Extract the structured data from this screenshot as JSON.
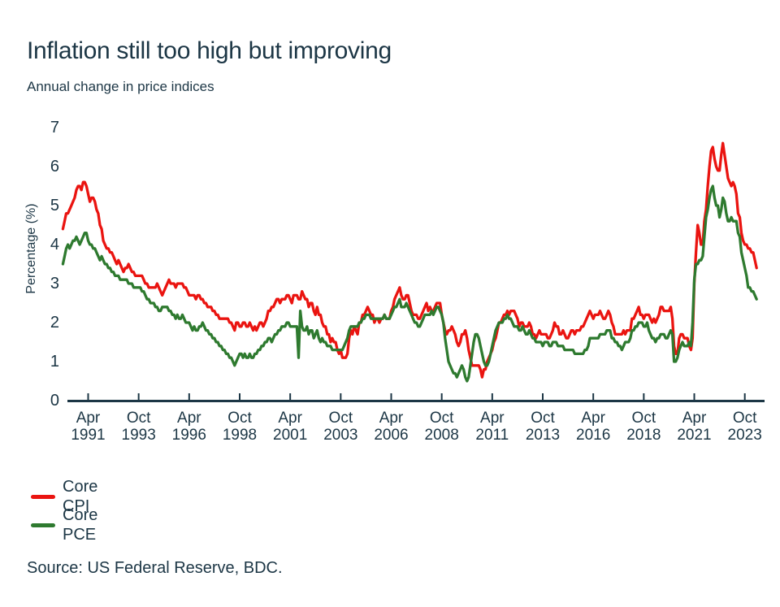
{
  "header": {
    "title": "Inflation still too high but improving",
    "subtitle": "Annual change in price indices"
  },
  "source": "Source: US Federal Reserve, BDC.",
  "colors": {
    "text": "#1c3645",
    "axis": "#1c3645",
    "core_cpi": "#ea1410",
    "core_pce": "#2e7a2f"
  },
  "chart_data": {
    "type": "line",
    "title": "Inflation still too high but improving",
    "subtitle": "Annual change in price indices",
    "xlabel": "",
    "ylabel": "Percentage (%)",
    "ylim": [
      0,
      7
    ],
    "y_ticks": [
      0,
      1,
      2,
      3,
      4,
      5,
      6,
      7
    ],
    "grid": false,
    "legend_position": "bottom-left",
    "frequency": "monthly",
    "x_start": "1990-01",
    "x_end": "2024-05",
    "x_ticks": [
      {
        "month": "Apr",
        "year": "1991"
      },
      {
        "month": "Oct",
        "year": "1993"
      },
      {
        "month": "Apr",
        "year": "1996"
      },
      {
        "month": "Oct",
        "year": "1998"
      },
      {
        "month": "Apr",
        "year": "2001"
      },
      {
        "month": "Oct",
        "year": "2003"
      },
      {
        "month": "Apr",
        "year": "2006"
      },
      {
        "month": "Oct",
        "year": "2008"
      },
      {
        "month": "Apr",
        "year": "2011"
      },
      {
        "month": "Oct",
        "year": "2013"
      },
      {
        "month": "Apr",
        "year": "2016"
      },
      {
        "month": "Oct",
        "year": "2018"
      },
      {
        "month": "Apr",
        "year": "2021"
      },
      {
        "month": "Oct",
        "year": "2023"
      }
    ],
    "series": [
      {
        "name": "Core CPI",
        "color": "#ea1410",
        "values": [
          4.4,
          4.6,
          4.8,
          4.8,
          4.9,
          5.0,
          5.1,
          5.2,
          5.4,
          5.5,
          5.5,
          5.4,
          5.6,
          5.6,
          5.5,
          5.3,
          5.1,
          5.2,
          5.2,
          5.1,
          4.9,
          4.8,
          4.5,
          4.4,
          4.1,
          4.0,
          3.9,
          3.9,
          3.8,
          3.8,
          3.7,
          3.6,
          3.5,
          3.6,
          3.5,
          3.4,
          3.3,
          3.4,
          3.4,
          3.5,
          3.4,
          3.3,
          3.3,
          3.2,
          3.2,
          3.2,
          3.2,
          3.2,
          3.1,
          3.0,
          3.0,
          2.9,
          2.9,
          2.9,
          2.9,
          2.9,
          3.0,
          2.9,
          2.8,
          2.7,
          2.8,
          2.9,
          3.0,
          3.1,
          3.0,
          3.0,
          3.0,
          2.9,
          3.0,
          3.0,
          3.0,
          3.0,
          2.9,
          2.9,
          2.8,
          2.7,
          2.7,
          2.7,
          2.7,
          2.6,
          2.7,
          2.7,
          2.6,
          2.6,
          2.5,
          2.5,
          2.4,
          2.4,
          2.4,
          2.3,
          2.3,
          2.2,
          2.2,
          2.1,
          2.1,
          2.1,
          2.1,
          2.1,
          2.1,
          2.0,
          2.0,
          1.9,
          1.8,
          2.0,
          2.0,
          1.9,
          1.9,
          2.0,
          2.0,
          1.9,
          1.9,
          2.0,
          1.9,
          1.8,
          1.9,
          1.8,
          1.9,
          2.0,
          2.0,
          1.9,
          2.0,
          2.1,
          2.3,
          2.3,
          2.4,
          2.4,
          2.5,
          2.6,
          2.6,
          2.5,
          2.6,
          2.6,
          2.6,
          2.7,
          2.7,
          2.6,
          2.5,
          2.7,
          2.7,
          2.7,
          2.6,
          2.6,
          2.8,
          2.7,
          2.6,
          2.6,
          2.4,
          2.5,
          2.5,
          2.3,
          2.2,
          2.4,
          2.2,
          2.2,
          2.0,
          1.9,
          1.9,
          1.7,
          1.7,
          1.5,
          1.6,
          1.5,
          1.5,
          1.3,
          1.2,
          1.3,
          1.1,
          1.1,
          1.1,
          1.2,
          1.6,
          1.8,
          1.7,
          1.9,
          1.8,
          1.7,
          2.0,
          2.0,
          2.2,
          2.2,
          2.3,
          2.4,
          2.3,
          2.2,
          2.2,
          2.0,
          2.1,
          2.1,
          2.0,
          2.1,
          2.1,
          2.2,
          2.1,
          2.1,
          2.1,
          2.3,
          2.4,
          2.6,
          2.7,
          2.8,
          2.9,
          2.7,
          2.6,
          2.6,
          2.7,
          2.7,
          2.5,
          2.3,
          2.2,
          2.2,
          2.2,
          2.1,
          2.1,
          2.2,
          2.3,
          2.4,
          2.5,
          2.3,
          2.4,
          2.3,
          2.3,
          2.4,
          2.5,
          2.5,
          2.5,
          2.2,
          2.0,
          1.8,
          1.7,
          1.8,
          1.8,
          1.9,
          1.8,
          1.7,
          1.5,
          1.4,
          1.5,
          1.7,
          1.7,
          1.8,
          1.6,
          1.3,
          1.1,
          0.9,
          0.9,
          0.9,
          0.9,
          0.9,
          0.8,
          0.6,
          0.8,
          0.8,
          1.0,
          1.1,
          1.2,
          1.3,
          1.5,
          1.6,
          1.8,
          2.0,
          2.0,
          2.1,
          2.2,
          2.2,
          2.3,
          2.2,
          2.3,
          2.3,
          2.3,
          2.2,
          2.1,
          1.9,
          2.0,
          2.0,
          1.9,
          1.9,
          1.9,
          2.0,
          1.9,
          1.7,
          1.7,
          1.6,
          1.7,
          1.8,
          1.7,
          1.7,
          1.7,
          1.7,
          1.6,
          1.6,
          1.7,
          1.8,
          2.0,
          1.9,
          1.9,
          1.7,
          1.7,
          1.8,
          1.7,
          1.6,
          1.6,
          1.7,
          1.8,
          1.8,
          1.7,
          1.8,
          1.8,
          1.8,
          1.9,
          1.9,
          2.0,
          2.1,
          2.2,
          2.3,
          2.2,
          2.1,
          2.2,
          2.2,
          2.2,
          2.3,
          2.2,
          2.1,
          2.1,
          2.2,
          2.3,
          2.2,
          2.0,
          1.9,
          1.7,
          1.7,
          1.7,
          1.7,
          1.7,
          1.8,
          1.7,
          1.8,
          1.8,
          1.8,
          2.1,
          2.1,
          2.2,
          2.3,
          2.4,
          2.2,
          2.2,
          2.1,
          2.2,
          2.2,
          2.2,
          2.1,
          2.0,
          2.1,
          2.0,
          2.1,
          2.2,
          2.4,
          2.4,
          2.3,
          2.3,
          2.3,
          2.3,
          2.4,
          2.1,
          1.4,
          1.2,
          1.2,
          1.6,
          1.7,
          1.7,
          1.6,
          1.6,
          1.6,
          1.4,
          1.3,
          1.6,
          3.0,
          3.8,
          4.5,
          4.3,
          4.0,
          4.0,
          4.6,
          4.9,
          5.5,
          6.0,
          6.4,
          6.5,
          6.2,
          6.0,
          5.9,
          5.9,
          6.3,
          6.6,
          6.3,
          6.0,
          5.7,
          5.6,
          5.5,
          5.6,
          5.5,
          5.3,
          4.8,
          4.7,
          4.3,
          4.1,
          4.0,
          4.0,
          3.9,
          3.9,
          3.8,
          3.8,
          3.6,
          3.4
        ]
      },
      {
        "name": "Core PCE",
        "color": "#2e7a2f",
        "values": [
          3.5,
          3.7,
          3.9,
          4.0,
          3.9,
          4.0,
          4.1,
          4.1,
          4.2,
          4.1,
          4.0,
          4.1,
          4.2,
          4.3,
          4.3,
          4.1,
          4.0,
          4.0,
          3.9,
          3.9,
          3.8,
          3.7,
          3.6,
          3.7,
          3.6,
          3.5,
          3.5,
          3.4,
          3.4,
          3.3,
          3.3,
          3.2,
          3.2,
          3.2,
          3.1,
          3.1,
          3.1,
          3.1,
          3.1,
          3.0,
          3.0,
          3.0,
          2.9,
          2.9,
          2.9,
          2.9,
          2.9,
          2.8,
          2.8,
          2.7,
          2.6,
          2.6,
          2.5,
          2.5,
          2.5,
          2.4,
          2.4,
          2.3,
          2.3,
          2.4,
          2.4,
          2.4,
          2.4,
          2.3,
          2.3,
          2.2,
          2.2,
          2.1,
          2.2,
          2.1,
          2.1,
          2.2,
          2.1,
          2.0,
          2.0,
          2.0,
          1.9,
          1.8,
          1.9,
          1.8,
          1.8,
          1.9,
          1.9,
          2.0,
          1.9,
          1.8,
          1.8,
          1.7,
          1.7,
          1.6,
          1.6,
          1.5,
          1.5,
          1.4,
          1.4,
          1.3,
          1.3,
          1.2,
          1.2,
          1.1,
          1.1,
          1.0,
          0.9,
          1.0,
          1.1,
          1.2,
          1.2,
          1.1,
          1.2,
          1.1,
          1.1,
          1.2,
          1.1,
          1.1,
          1.2,
          1.2,
          1.3,
          1.3,
          1.4,
          1.4,
          1.5,
          1.5,
          1.6,
          1.6,
          1.5,
          1.6,
          1.7,
          1.7,
          1.8,
          1.8,
          1.9,
          1.9,
          1.9,
          2.0,
          2.0,
          1.9,
          1.9,
          1.9,
          1.9,
          1.9,
          1.1,
          2.3,
          1.9,
          1.8,
          1.8,
          1.9,
          1.7,
          1.8,
          1.8,
          1.6,
          1.7,
          1.8,
          1.6,
          1.5,
          1.6,
          1.5,
          1.5,
          1.4,
          1.4,
          1.4,
          1.3,
          1.3,
          1.3,
          1.3,
          1.3,
          1.3,
          1.3,
          1.4,
          1.5,
          1.6,
          1.8,
          1.9,
          1.9,
          1.9,
          1.9,
          1.9,
          2.0,
          2.0,
          2.1,
          2.1,
          2.2,
          2.2,
          2.2,
          2.1,
          2.1,
          2.1,
          2.1,
          2.1,
          2.1,
          2.1,
          2.1,
          2.2,
          2.1,
          2.1,
          2.1,
          2.2,
          2.3,
          2.4,
          2.4,
          2.5,
          2.6,
          2.4,
          2.4,
          2.4,
          2.5,
          2.4,
          2.3,
          2.2,
          2.1,
          2.0,
          2.0,
          1.9,
          1.9,
          2.0,
          2.1,
          2.2,
          2.2,
          2.2,
          2.2,
          2.3,
          2.2,
          2.3,
          2.4,
          2.4,
          2.3,
          2.2,
          2.0,
          1.6,
          1.3,
          1.0,
          0.9,
          0.8,
          0.7,
          0.7,
          0.6,
          0.7,
          0.8,
          0.9,
          0.8,
          0.6,
          0.5,
          0.6,
          0.9,
          1.2,
          1.5,
          1.7,
          1.7,
          1.6,
          1.4,
          1.2,
          1.0,
          0.9,
          0.9,
          1.0,
          1.2,
          1.4,
          1.6,
          1.8,
          1.9,
          2.0,
          2.0,
          2.0,
          2.1,
          2.1,
          2.2,
          2.1,
          2.1,
          2.0,
          1.9,
          1.9,
          1.9,
          1.8,
          1.8,
          1.9,
          1.8,
          1.7,
          1.7,
          1.8,
          1.7,
          1.6,
          1.6,
          1.5,
          1.5,
          1.5,
          1.5,
          1.4,
          1.5,
          1.5,
          1.5,
          1.4,
          1.4,
          1.5,
          1.5,
          1.5,
          1.4,
          1.4,
          1.4,
          1.4,
          1.3,
          1.3,
          1.3,
          1.3,
          1.3,
          1.3,
          1.2,
          1.2,
          1.2,
          1.2,
          1.2,
          1.2,
          1.3,
          1.3,
          1.4,
          1.6,
          1.6,
          1.6,
          1.6,
          1.6,
          1.6,
          1.7,
          1.7,
          1.7,
          1.7,
          1.8,
          1.8,
          1.8,
          1.6,
          1.6,
          1.5,
          1.5,
          1.4,
          1.4,
          1.3,
          1.4,
          1.5,
          1.5,
          1.5,
          1.6,
          1.8,
          1.8,
          1.9,
          1.9,
          2.0,
          2.0,
          2.0,
          1.9,
          1.9,
          2.0,
          1.8,
          1.7,
          1.6,
          1.6,
          1.5,
          1.6,
          1.6,
          1.7,
          1.7,
          1.7,
          1.6,
          1.6,
          1.7,
          1.8,
          1.7,
          1.0,
          1.0,
          1.1,
          1.3,
          1.4,
          1.5,
          1.4,
          1.4,
          1.4,
          1.5,
          1.4,
          2.0,
          3.1,
          3.5,
          3.5,
          3.6,
          3.6,
          3.7,
          4.2,
          4.7,
          4.9,
          5.2,
          5.4,
          5.5,
          5.2,
          5.0,
          5.0,
          4.7,
          4.9,
          5.2,
          5.1,
          4.8,
          4.6,
          4.6,
          4.7,
          4.6,
          4.6,
          4.6,
          4.3,
          4.2,
          3.8,
          3.6,
          3.4,
          3.2,
          2.9,
          2.9,
          2.8,
          2.8,
          2.7,
          2.6
        ]
      }
    ]
  }
}
